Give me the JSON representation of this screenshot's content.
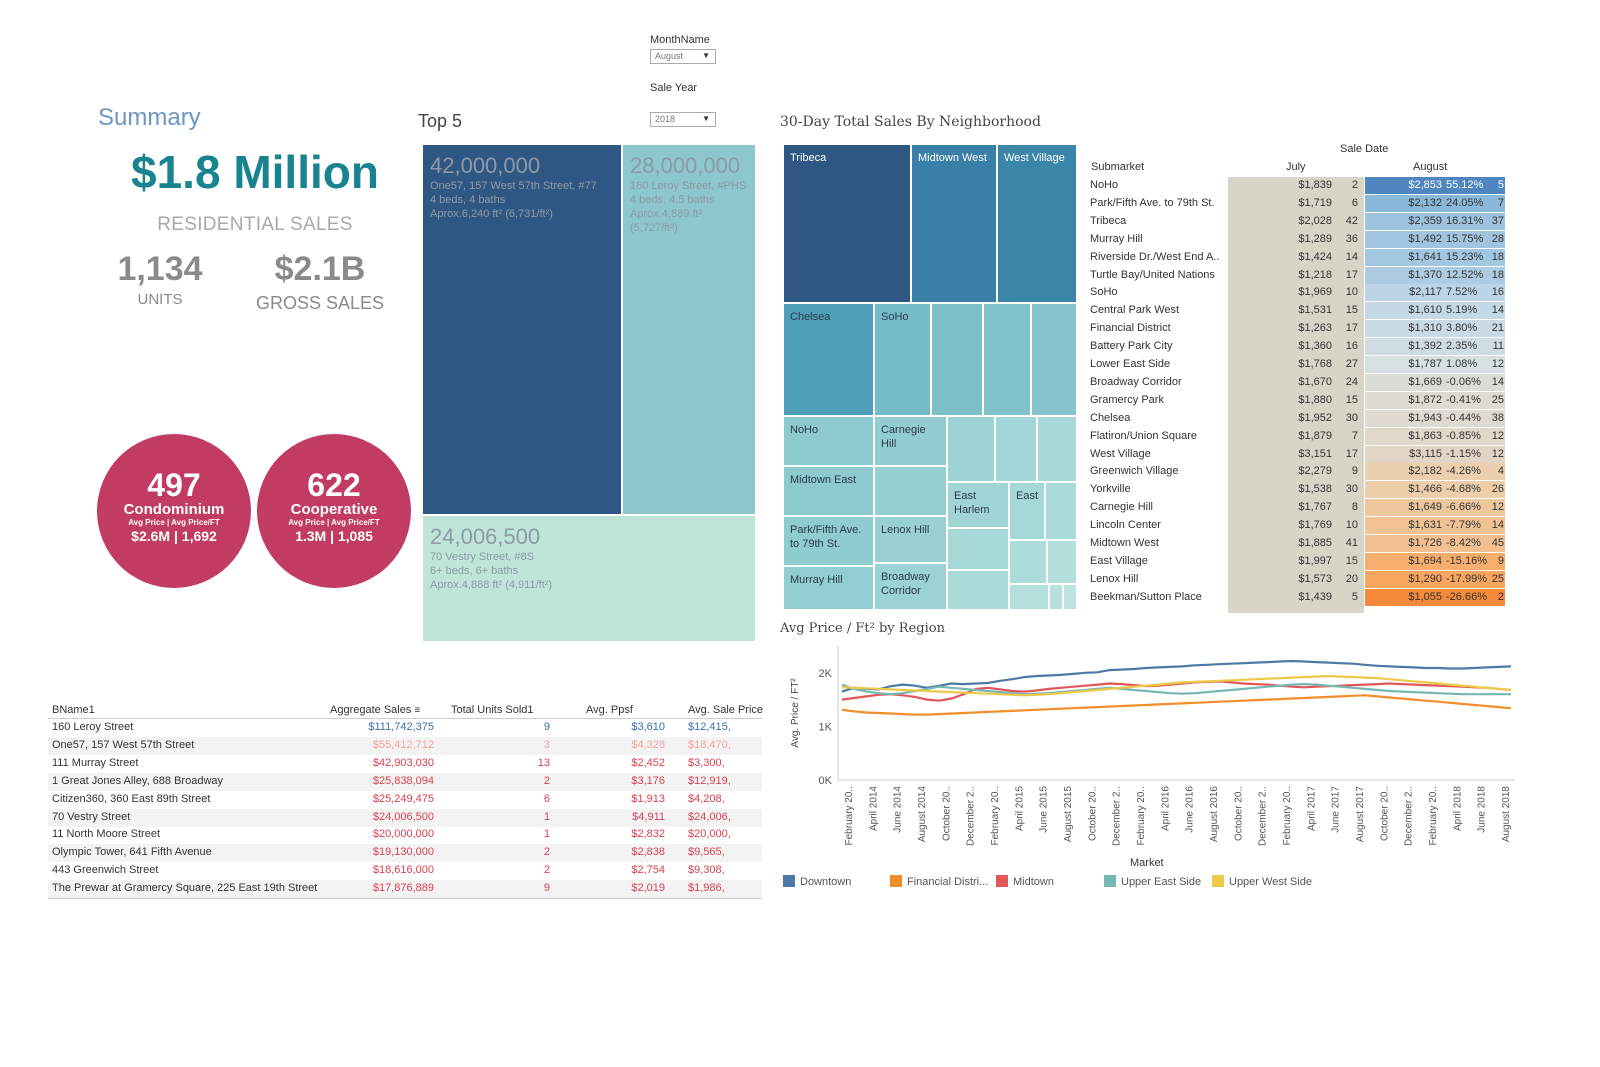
{
  "filters": {
    "month": {
      "label": "MonthName",
      "value": "August"
    },
    "year": {
      "label": "Sale Year",
      "value": "2018"
    }
  },
  "summary": {
    "title": "Summary",
    "amount": "$1.8 Million",
    "residential_label": "RESIDENTIAL SALES",
    "units_value": "1,134",
    "units_label": "UNITS",
    "gross_value": "$2.1B",
    "gross_label": "GROSS SALES",
    "condo": {
      "count": "497",
      "type": "Condominium",
      "sub": "Avg Price | Avg Price/FT",
      "values": "$2.6M | 1,692"
    },
    "coop": {
      "count": "622",
      "type": "Cooperative",
      "sub": "Avg Price | Avg Price/FT",
      "values": "1.3M | 1,085"
    }
  },
  "top5": {
    "title": "Top 5",
    "cells": [
      {
        "value": "42,000,000",
        "address": "One57, 157 West 57th Street, #77",
        "beds": "4 beds, 4 baths",
        "area": "Aprox.6,240 ft² (6,731/ft²)"
      },
      {
        "value": "28,000,000",
        "address": "160 Leroy Street, #PHS",
        "beds": "4 beds, 4.5 baths",
        "area": "Aprox.4,889 ft²",
        "area2": "(5,727/ft²)"
      },
      {
        "value": "24,006,500",
        "address": "70 Vestry Street, #8S",
        "beds": "6+ beds, 6+ baths",
        "area": "Aprox.4,888 ft² (4,911/ft²)"
      }
    ]
  },
  "neighborhood": {
    "title": "30-Day Total Sales By Neighborhood",
    "labels": [
      "Tribeca",
      "Midtown West",
      "West Village",
      "Chelsea",
      "SoHo",
      "NoHo",
      "Carnegie Hill",
      "Midtown East",
      "East Harlem",
      "East",
      "Park/Fifth Ave. to 79th St.",
      "Lenox Hill",
      "Murray Hill",
      "Broadway Corridor"
    ]
  },
  "submarket": {
    "header": "Sale Date",
    "col_name": "Submarket",
    "col_july": "July",
    "col_august": "August",
    "rows": [
      {
        "name": "NoHo",
        "jp": "$1,839",
        "jn": "2",
        "ap": "$2,853",
        "pct": "55.12%",
        "an": "5",
        "color": "#4f86c0"
      },
      {
        "name": "Park/Fifth Ave. to 79th St.",
        "jp": "$1,719",
        "jn": "6",
        "ap": "$2,132",
        "pct": "24.05%",
        "an": "7",
        "color": "#8ab8da"
      },
      {
        "name": "Tribeca",
        "jp": "$2,028",
        "jn": "42",
        "ap": "$2,359",
        "pct": "16.31%",
        "an": "37",
        "color": "#9ec3df"
      },
      {
        "name": "Murray Hill",
        "jp": "$1,289",
        "jn": "36",
        "ap": "$1,492",
        "pct": "15.75%",
        "an": "28",
        "color": "#a1c5e0"
      },
      {
        "name": "Riverside Dr./West End A..",
        "jp": "$1,424",
        "jn": "14",
        "ap": "$1,641",
        "pct": "15.23%",
        "an": "18",
        "color": "#a4c7e1"
      },
      {
        "name": "Turtle Bay/United Nations",
        "jp": "$1,218",
        "jn": "17",
        "ap": "$1,370",
        "pct": "12.52%",
        "an": "18",
        "color": "#adcce3"
      },
      {
        "name": "SoHo",
        "jp": "$1,969",
        "jn": "10",
        "ap": "$2,117",
        "pct": "7.52%",
        "an": "16",
        "color": "#bcd5e6"
      },
      {
        "name": "Central Park West",
        "jp": "$1,531",
        "jn": "15",
        "ap": "$1,610",
        "pct": "5.19%",
        "an": "14",
        "color": "#c4d8e6"
      },
      {
        "name": "Financial District",
        "jp": "$1,263",
        "jn": "17",
        "ap": "$1,310",
        "pct": "3.80%",
        "an": "21",
        "color": "#c9dae5"
      },
      {
        "name": "Battery Park City",
        "jp": "$1,360",
        "jn": "16",
        "ap": "$1,392",
        "pct": "2.35%",
        "an": "11",
        "color": "#cfdce4"
      },
      {
        "name": "Lower East Side",
        "jp": "$1,768",
        "jn": "27",
        "ap": "$1,787",
        "pct": "1.08%",
        "an": "12",
        "color": "#d6dfe2"
      },
      {
        "name": "Broadway Corridor",
        "jp": "$1,670",
        "jn": "24",
        "ap": "$1,669",
        "pct": "-0.06%",
        "an": "14",
        "color": "#dcdcd6"
      },
      {
        "name": "Gramercy Park",
        "jp": "$1,880",
        "jn": "15",
        "ap": "$1,872",
        "pct": "-0.41%",
        "an": "25",
        "color": "#dedad2"
      },
      {
        "name": "Chelsea",
        "jp": "$1,952",
        "jn": "30",
        "ap": "$1,943",
        "pct": "-0.44%",
        "an": "38",
        "color": "#dfd9d0"
      },
      {
        "name": "Flatiron/Union Square",
        "jp": "$1,879",
        "jn": "7",
        "ap": "$1,863",
        "pct": "-0.85%",
        "an": "12",
        "color": "#e1d7cb"
      },
      {
        "name": "West Village",
        "jp": "$3,151",
        "jn": "17",
        "ap": "$3,115",
        "pct": "-1.15%",
        "an": "12",
        "color": "#e3d5c6"
      },
      {
        "name": "Greenwich Village",
        "jp": "$2,279",
        "jn": "9",
        "ap": "$2,182",
        "pct": "-4.26%",
        "an": "4",
        "color": "#ebcfae"
      },
      {
        "name": "Yorkville",
        "jp": "$1,538",
        "jn": "30",
        "ap": "$1,466",
        "pct": "-4.68%",
        "an": "26",
        "color": "#ecceaa"
      },
      {
        "name": "Carnegie Hill",
        "jp": "$1,767",
        "jn": "8",
        "ap": "$1,649",
        "pct": "-6.66%",
        "an": "12",
        "color": "#efc79d"
      },
      {
        "name": "Lincoln Center",
        "jp": "$1,769",
        "jn": "10",
        "ap": "$1,631",
        "pct": "-7.79%",
        "an": "14",
        "color": "#f1c394"
      },
      {
        "name": "Midtown West",
        "jp": "$1,885",
        "jn": "41",
        "ap": "$1,726",
        "pct": "-8.42%",
        "an": "45",
        "color": "#f2c090"
      },
      {
        "name": "East Village",
        "jp": "$1,997",
        "jn": "15",
        "ap": "$1,694",
        "pct": "-15.16%",
        "an": "9",
        "color": "#f6ae6e"
      },
      {
        "name": "Lenox Hill",
        "jp": "$1,573",
        "jn": "20",
        "ap": "$1,290",
        "pct": "-17.99%",
        "an": "25",
        "color": "#f7a55f"
      },
      {
        "name": "Beekman/Sutton Place",
        "jp": "$1,439",
        "jn": "5",
        "ap": "$1,055",
        "pct": "-26.66%",
        "an": "2",
        "color": "#f58b3a"
      }
    ]
  },
  "buildings": {
    "headers": {
      "name": "BName1",
      "sales": "Aggregate Sales",
      "units": "Total Units Sold1",
      "ppsf": "Avg. Ppsf",
      "price": "Avg. Sale Price"
    },
    "rows": [
      {
        "name": "160 Leroy Street",
        "sales": "$111,742,375",
        "units": "9",
        "ppsf": "$3,610",
        "price": "$12,415,",
        "color": "#3a6fb0"
      },
      {
        "name": "One57, 157 West 57th Street",
        "sales": "$55,412,712",
        "units": "3",
        "ppsf": "$4,328",
        "price": "$18,470,",
        "color": "#f2a49a"
      },
      {
        "name": "111 Murray Street",
        "sales": "$42,903,030",
        "units": "13",
        "ppsf": "$2,452",
        "price": "$3,300,",
        "color": "#d9414f"
      },
      {
        "name": "1 Great Jones Alley, 688 Broadway",
        "sales": "$25,838,094",
        "units": "2",
        "ppsf": "$3,176",
        "price": "$12,919,",
        "color": "#d9414f"
      },
      {
        "name": "Citizen360, 360 East 89th Street",
        "sales": "$25,249,475",
        "units": "6",
        "ppsf": "$1,913",
        "price": "$4,208,",
        "color": "#d9414f"
      },
      {
        "name": "70 Vestry Street",
        "sales": "$24,006,500",
        "units": "1",
        "ppsf": "$4,911",
        "price": "$24,006,",
        "color": "#d9414f"
      },
      {
        "name": "11 North Moore Street",
        "sales": "$20,000,000",
        "units": "1",
        "ppsf": "$2,832",
        "price": "$20,000,",
        "color": "#d9414f"
      },
      {
        "name": "Olympic Tower, 641 Fifth Avenue",
        "sales": "$19,130,000",
        "units": "2",
        "ppsf": "$2,838",
        "price": "$9,565,",
        "color": "#d9414f"
      },
      {
        "name": "443 Greenwich Street",
        "sales": "$18,616,000",
        "units": "2",
        "ppsf": "$2,754",
        "price": "$9,308,",
        "color": "#d9414f"
      },
      {
        "name": "The Prewar at Gramercy Square, 225 East 19th Street",
        "sales": "$17,876,889",
        "units": "9",
        "ppsf": "$2,019",
        "price": "$1,986,",
        "color": "#d9414f"
      }
    ]
  },
  "chart_data": {
    "type": "line",
    "title": "Avg Price / Ft² by Region",
    "ylabel": "Avg. Price / FT²",
    "xlabel": "Market",
    "ylim": [
      0,
      2500
    ],
    "yticks": [
      "0K",
      "1K",
      "2K"
    ],
    "xticks": [
      "February 20..",
      "April 2014",
      "June 2014",
      "August 2014",
      "October 20..",
      "December 2..",
      "February 20..",
      "April 2015",
      "June 2015",
      "August 2015",
      "October 20..",
      "December 2..",
      "February 20..",
      "April 2016",
      "June 2016",
      "August 2016",
      "October 20..",
      "December 2..",
      "February 20..",
      "April 2017",
      "June 2017",
      "August 2017",
      "October 20..",
      "December 2..",
      "February 20..",
      "April 2018",
      "June 2018",
      "August 2018"
    ],
    "series": [
      {
        "name": "Downtown",
        "color": "#4e79a7",
        "values": [
          1650,
          1720,
          1700,
          1690,
          1750,
          1780,
          1760,
          1720,
          1760,
          1800,
          1790,
          1800,
          1810,
          1850,
          1880,
          1920,
          1940,
          1950,
          1960,
          1980,
          2000,
          2010,
          2050,
          2060,
          2070,
          2090,
          2100,
          2110,
          2120,
          2140,
          2150,
          2160,
          2170,
          2180,
          2190,
          2200,
          2210,
          2220,
          2210,
          2200,
          2190,
          2180,
          2170,
          2150,
          2130,
          2120,
          2110,
          2100,
          2090,
          2090,
          2080,
          2080,
          2090,
          2100,
          2110,
          2120
        ]
      },
      {
        "name": "Financial Distri...",
        "color": "#f28e2b",
        "values": [
          1310,
          1280,
          1260,
          1250,
          1240,
          1230,
          1220,
          1220,
          1230,
          1240,
          1250,
          1260,
          1270,
          1280,
          1290,
          1300,
          1310,
          1320,
          1330,
          1340,
          1350,
          1360,
          1370,
          1380,
          1390,
          1400,
          1410,
          1420,
          1430,
          1440,
          1450,
          1460,
          1470,
          1480,
          1490,
          1500,
          1510,
          1520,
          1530,
          1540,
          1550,
          1560,
          1570,
          1580,
          1560,
          1540,
          1520,
          1500,
          1480,
          1460,
          1440,
          1420,
          1400,
          1380,
          1360,
          1340
        ]
      },
      {
        "name": "Midtown",
        "color": "#e15759",
        "values": [
          1500,
          1530,
          1560,
          1590,
          1600,
          1580,
          1550,
          1500,
          1480,
          1520,
          1600,
          1700,
          1720,
          1690,
          1660,
          1650,
          1670,
          1700,
          1720,
          1740,
          1760,
          1780,
          1800,
          1790,
          1770,
          1750,
          1760,
          1780,
          1800,
          1820,
          1830,
          1840,
          1820,
          1800,
          1790,
          1780,
          1760,
          1740,
          1730,
          1740,
          1750,
          1760,
          1770,
          1780,
          1790,
          1800,
          1790,
          1780,
          1770,
          1760,
          1750,
          1740,
          1730,
          1720,
          1700,
          1680
        ]
      },
      {
        "name": "Upper East Side",
        "color": "#76b7b2",
        "values": [
          1780,
          1700,
          1650,
          1620,
          1600,
          1620,
          1660,
          1700,
          1740,
          1720,
          1700,
          1680,
          1660,
          1640,
          1620,
          1600,
          1610,
          1620,
          1640,
          1660,
          1680,
          1700,
          1720,
          1700,
          1680,
          1660,
          1640,
          1620,
          1610,
          1620,
          1640,
          1660,
          1680,
          1700,
          1720,
          1740,
          1760,
          1780,
          1790,
          1780,
          1760,
          1740,
          1720,
          1700,
          1680,
          1660,
          1650,
          1640,
          1630,
          1620,
          1610,
          1600,
          1600,
          1600,
          1600,
          1600
        ]
      },
      {
        "name": "Upper West Side",
        "color": "#edc948",
        "values": [
          1730,
          1720,
          1710,
          1700,
          1690,
          1680,
          1670,
          1660,
          1650,
          1640,
          1630,
          1620,
          1610,
          1600,
          1590,
          1580,
          1590,
          1600,
          1620,
          1640,
          1660,
          1680,
          1700,
          1720,
          1740,
          1760,
          1780,
          1800,
          1820,
          1830,
          1840,
          1850,
          1860,
          1870,
          1880,
          1890,
          1900,
          1910,
          1920,
          1930,
          1940,
          1930,
          1920,
          1910,
          1900,
          1880,
          1860,
          1840,
          1820,
          1800,
          1780,
          1760,
          1740,
          1720,
          1700,
          1680
        ]
      }
    ]
  },
  "legend_title": "Market"
}
